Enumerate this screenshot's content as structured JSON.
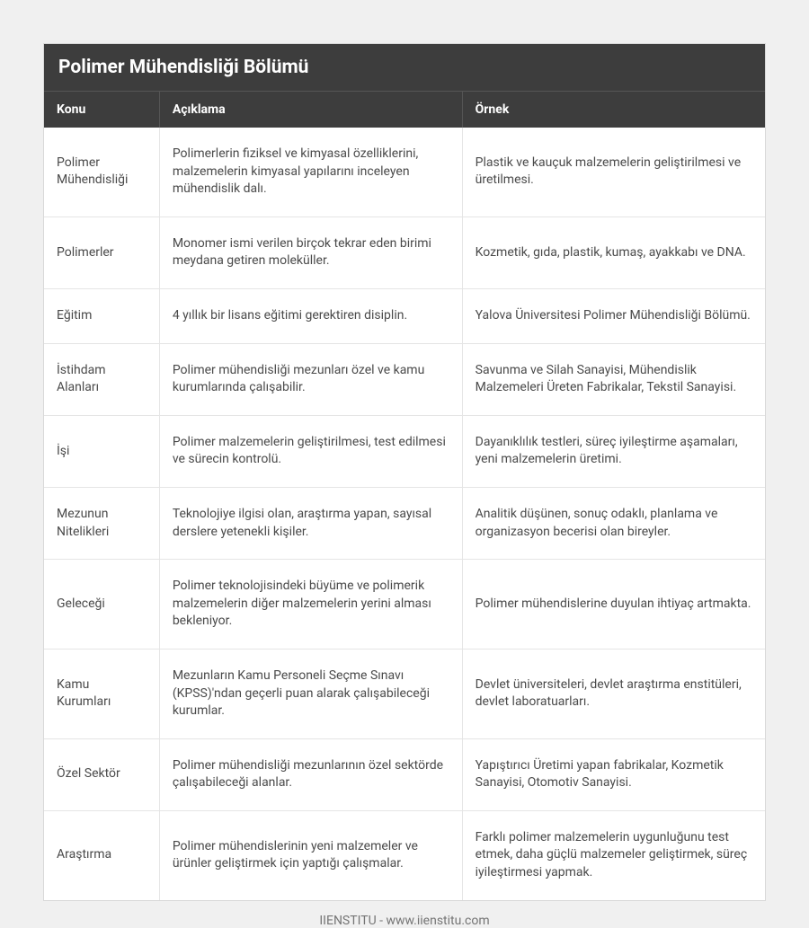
{
  "table": {
    "title": "Polimer Mühendisliği Bölümü",
    "columns": [
      "Konu",
      "Açıklama",
      "Örnek"
    ],
    "rows": [
      {
        "topic": "Polimer Mühendisliği",
        "description": "Polimerlerin fiziksel ve kimyasal özelliklerini, malzemelerin kimyasal yapılarını inceleyen mühendislik dalı.",
        "example": "Plastik ve kauçuk malzemelerin geliştirilmesi ve üretilmesi."
      },
      {
        "topic": "Polimerler",
        "description": "Monomer ismi verilen birçok tekrar eden birimi meydana getiren moleküller.",
        "example": "Kozmetik, gıda, plastik, kumaş, ayakkabı ve DNA."
      },
      {
        "topic": "Eğitim",
        "description": "4 yıllık bir lisans eğitimi gerektiren disiplin.",
        "example": "Yalova Üniversitesi Polimer Mühendisliği Bölümü."
      },
      {
        "topic": "İstihdam Alanları",
        "description": "Polimer mühendisliği mezunları özel ve kamu kurumlarında çalışabilir.",
        "example": "Savunma ve Silah Sanayisi, Mühendislik Malzemeleri Üreten Fabrikalar, Tekstil Sanayisi."
      },
      {
        "topic": "İşi",
        "description": "Polimer malzemelerin geliştirilmesi, test edilmesi ve sürecin kontrolü.",
        "example": "Dayanıklılık testleri, süreç iyileştirme aşamaları, yeni malzemelerin üretimi."
      },
      {
        "topic": "Mezunun Nitelikleri",
        "description": "Teknolojiye ilgisi olan, araştırma yapan, sayısal derslere yetenekli kişiler.",
        "example": "Analitik düşünen, sonuç odaklı, planlama ve organizasyon becerisi olan bireyler."
      },
      {
        "topic": "Geleceği",
        "description": "Polimer teknolojisindeki büyüme ve polimerik malzemelerin diğer malzemelerin yerini alması bekleniyor.",
        "example": "Polimer mühendislerine duyulan ihtiyaç artmakta."
      },
      {
        "topic": "Kamu Kurumları",
        "description": "Mezunların Kamu Personeli Seçme Sınavı (KPSS)'ndan geçerli puan alarak çalışabileceği kurumlar.",
        "example": "Devlet üniversiteleri, devlet araştırma enstitüleri, devlet laboratuarları."
      },
      {
        "topic": "Özel Sektör",
        "description": "Polimer mühendisliği mezunlarının özel sektörde çalışabileceği alanlar.",
        "example": "Yapıştırıcı Üretimi yapan fabrikalar, Kozmetik Sanayisi, Otomotiv Sanayisi."
      },
      {
        "topic": "Araştırma",
        "description": "Polimer mühendislerinin yeni malzemeler ve ürünler geliştirmek için yaptığı çalışmalar.",
        "example": "Farklı polimer malzemelerin uygunluğunu test etmek, daha güçlü malzemeler geliştirmek, süreç iyileştirmesi yapmak."
      }
    ]
  },
  "footer": "IIENSTITU - www.iienstitu.com"
}
